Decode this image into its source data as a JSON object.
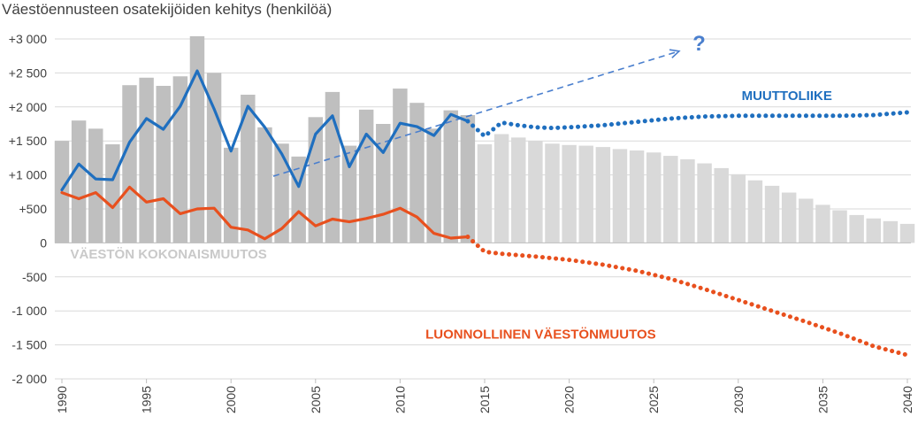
{
  "chart_data": {
    "type": "bar",
    "title": "Väestöennusteen osatekijöiden kehitys (henkilöä)",
    "xlabel": "",
    "ylabel": "",
    "ylim": [
      -2000,
      3000
    ],
    "xlim": [
      1990,
      2040
    ],
    "grid": true,
    "x_tick_labels": [
      "1990",
      "1995",
      "2000",
      "2005",
      "2010",
      "2015",
      "2020",
      "2025",
      "2030",
      "2035",
      "2040"
    ],
    "y_tick_labels": [
      "+3 000",
      "+2 500",
      "+2 000",
      "+1 500",
      "+1 000",
      "+500",
      "0",
      "-500",
      "-1 000",
      "-1 500",
      "-2 000"
    ],
    "y_tick_values": [
      3000,
      2500,
      2000,
      1500,
      1000,
      500,
      0,
      -500,
      -1000,
      -1500,
      -2000
    ],
    "colors": {
      "historical_bar": "#bfbfbf",
      "forecast_bar": "#d9d9d9",
      "migration": "#1f6fbf",
      "natural": "#e8501e",
      "trend": "#4a7fce",
      "total_label": "#c9c9c9"
    },
    "series": [
      {
        "name": "VÄESTÖN KOKONAISMUUTOS",
        "kind": "bar",
        "x": [
          1990,
          1991,
          1992,
          1993,
          1994,
          1995,
          1996,
          1997,
          1998,
          1999,
          2000,
          2001,
          2002,
          2003,
          2004,
          2005,
          2006,
          2007,
          2008,
          2009,
          2010,
          2011,
          2012,
          2013,
          2014,
          2015,
          2016,
          2017,
          2018,
          2019,
          2020,
          2021,
          2022,
          2023,
          2024,
          2025,
          2026,
          2027,
          2028,
          2029,
          2030,
          2031,
          2032,
          2033,
          2034,
          2035,
          2036,
          2037,
          2038,
          2039,
          2040
        ],
        "values": [
          1500,
          1800,
          1680,
          1450,
          2320,
          2430,
          2310,
          2450,
          3040,
          2500,
          1400,
          2180,
          1700,
          1460,
          1270,
          1850,
          2220,
          1430,
          1960,
          1750,
          2270,
          2060,
          1680,
          1950,
          1880,
          1450,
          1600,
          1550,
          1500,
          1460,
          1440,
          1430,
          1410,
          1380,
          1360,
          1330,
          1280,
          1230,
          1170,
          1100,
          1010,
          920,
          840,
          740,
          650,
          560,
          480,
          410,
          360,
          320,
          280
        ],
        "forecast_from": 2015
      },
      {
        "name": "MUUTTOLIIKE",
        "kind": "line",
        "x": [
          1990,
          1991,
          1992,
          1993,
          1994,
          1995,
          1996,
          1997,
          1998,
          1999,
          2000,
          2001,
          2002,
          2003,
          2004,
          2005,
          2006,
          2007,
          2008,
          2009,
          2010,
          2011,
          2012,
          2013,
          2014
        ],
        "values": [
          780,
          1160,
          940,
          930,
          1480,
          1830,
          1670,
          2010,
          2530,
          1970,
          1350,
          2010,
          1700,
          1310,
          830,
          1600,
          1870,
          1120,
          1600,
          1330,
          1760,
          1710,
          1580,
          1890,
          1790
        ]
      },
      {
        "name": "MUUTTOLIIKE (ennuste)",
        "kind": "dotted",
        "x": [
          2014,
          2015,
          2016,
          2017,
          2018,
          2019,
          2020,
          2022,
          2024,
          2026,
          2028,
          2030,
          2032,
          2034,
          2036,
          2038,
          2040
        ],
        "values": [
          1790,
          1570,
          1770,
          1730,
          1700,
          1690,
          1700,
          1730,
          1780,
          1830,
          1860,
          1870,
          1870,
          1870,
          1870,
          1880,
          1920
        ]
      },
      {
        "name": "LUONNOLLINEN VÄESTÖNMUUTOS",
        "kind": "line",
        "x": [
          1990,
          1991,
          1992,
          1993,
          1994,
          1995,
          1996,
          1997,
          1998,
          1999,
          2000,
          2001,
          2002,
          2003,
          2004,
          2005,
          2006,
          2007,
          2008,
          2009,
          2010,
          2011,
          2012,
          2013,
          2014
        ],
        "values": [
          740,
          650,
          740,
          520,
          820,
          600,
          650,
          430,
          500,
          510,
          230,
          190,
          60,
          210,
          460,
          250,
          350,
          310,
          360,
          420,
          510,
          380,
          140,
          70,
          90
        ]
      },
      {
        "name": "LUONNOLLINEN VÄESTÖNMUUTOS (ennuste)",
        "kind": "dotted",
        "x": [
          2014,
          2015,
          2016,
          2018,
          2020,
          2022,
          2024,
          2026,
          2028,
          2030,
          2032,
          2034,
          2036,
          2038,
          2040
        ],
        "values": [
          90,
          -130,
          -160,
          -200,
          -250,
          -320,
          -410,
          -530,
          -680,
          -840,
          -1000,
          -1160,
          -1330,
          -1520,
          -1650
        ]
      },
      {
        "name": "",
        "kind": "trend",
        "x": [
          2002.5,
          2026.5
        ],
        "values": [
          980,
          2820
        ]
      }
    ],
    "annotations": [
      {
        "text": "MUUTTOLIIKE",
        "series": "migration",
        "x": 2030.2,
        "y": 2100
      },
      {
        "text": "VÄESTÖN KOKONAISMUUTOS",
        "series": "total_label",
        "x": 1990.5,
        "y": -230
      },
      {
        "text": "LUONNOLLINEN VÄESTÖNMUUTOS",
        "series": "natural",
        "x": 2011.5,
        "y": -1410
      },
      {
        "text": "?",
        "series": "trend",
        "x": 2027.3,
        "y": 2830
      }
    ]
  }
}
